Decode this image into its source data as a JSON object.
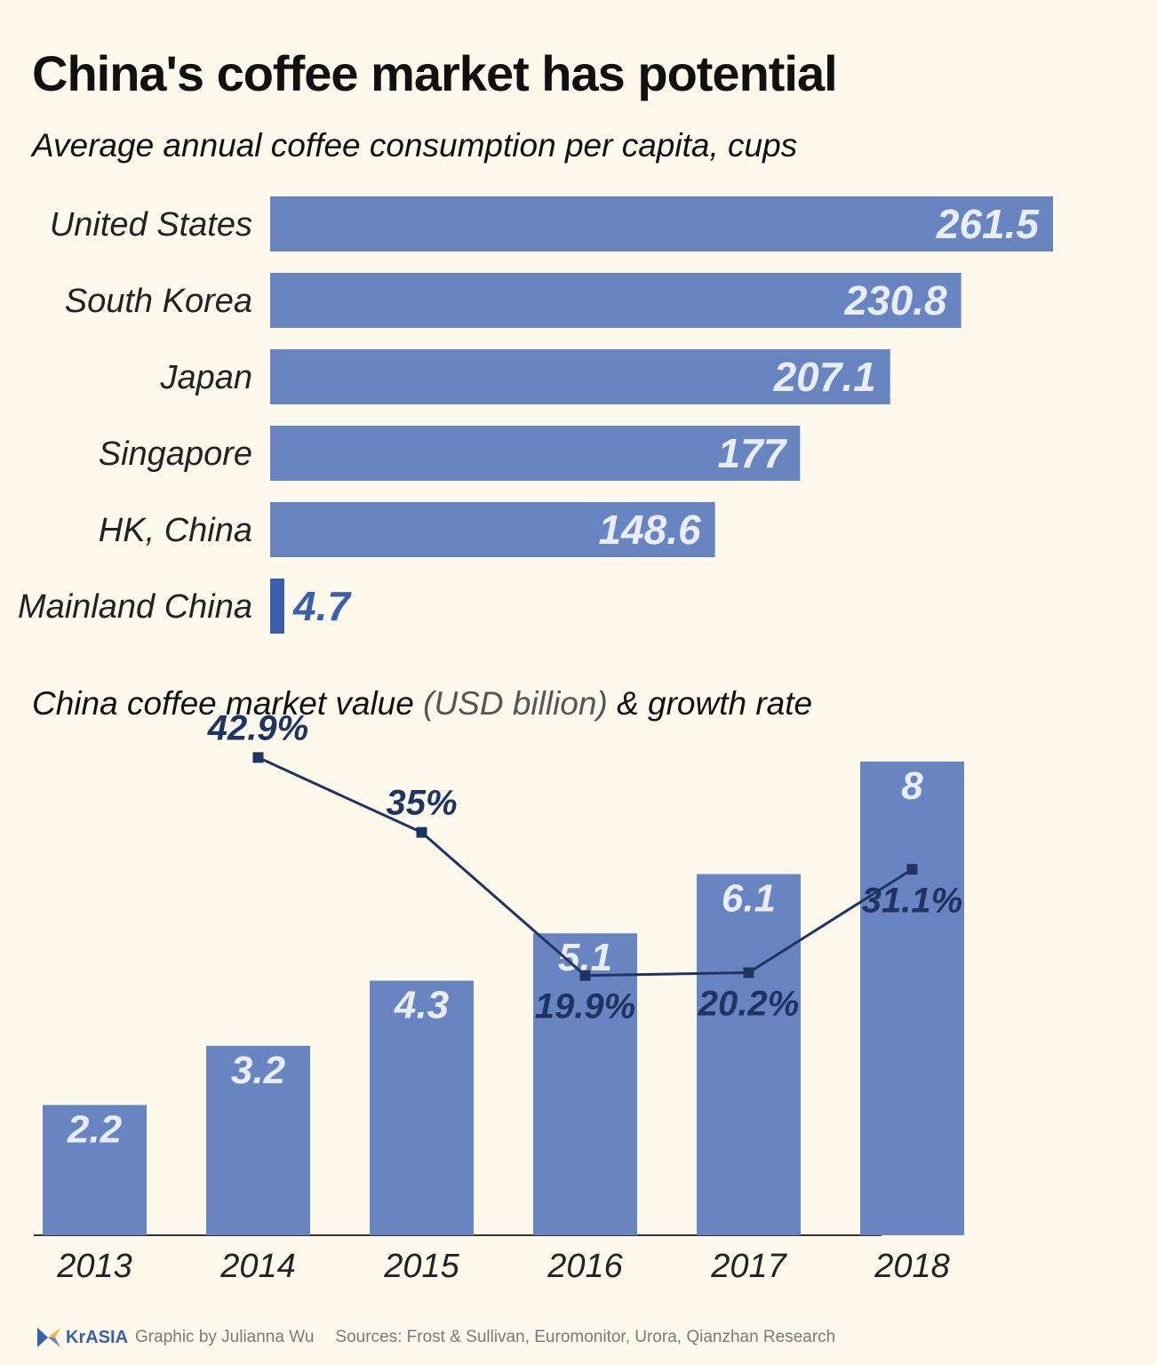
{
  "title": "China's coffee market has potential",
  "subtitle": "Average annual coffee consumption per capita, cups",
  "subtitle2": {
    "main": "China coffee market value",
    "unit": "(USD billion)",
    "rest": "& growth rate"
  },
  "chart_data": [
    {
      "type": "bar",
      "orientation": "horizontal",
      "title": "Average annual coffee consumption per capita, cups",
      "categories": [
        "United States",
        "South Korea",
        "Japan",
        "Singapore",
        "HK, China",
        "Mainland China"
      ],
      "values": [
        261.5,
        230.8,
        207.1,
        177,
        148.6,
        4.7
      ],
      "labels": [
        "261.5",
        "230.8",
        "207.1",
        "177",
        "148.6",
        "4.7"
      ],
      "xlim": [
        0,
        261.5
      ],
      "bar_color": "#6885c1",
      "highlight_color": "#3b5fa8",
      "label_color": "#e8edf8"
    },
    {
      "type": "bar",
      "title": "China coffee market value (USD billion) & growth rate",
      "categories": [
        "2013",
        "2014",
        "2015",
        "2016",
        "2017",
        "2018"
      ],
      "series": [
        {
          "name": "Market value (USD billion)",
          "type": "bar",
          "values": [
            2.2,
            3.2,
            4.3,
            5.1,
            6.1,
            8
          ],
          "labels": [
            "2.2",
            "3.2",
            "4.3",
            "5.1",
            "6.1",
            "8"
          ]
        },
        {
          "name": "Growth rate",
          "type": "line",
          "values": [
            null,
            42.9,
            35,
            19.9,
            20.2,
            31.1
          ],
          "labels": [
            "",
            "42.9%",
            "35%",
            "19.9%",
            "20.2%",
            "31.1%"
          ]
        }
      ],
      "ylim": [
        0,
        8
      ],
      "growth_ylim": [
        0,
        45
      ],
      "bar_color": "#6885c1",
      "line_color": "#1f3460",
      "label_color": "#e8edf8"
    }
  ],
  "footer": {
    "logo_text": "KrASIA",
    "credit": "Graphic by Julianna Wu",
    "sources": "Sources: Frost & Sullivan, Euromonitor, Urora, Qianzhan Research"
  }
}
